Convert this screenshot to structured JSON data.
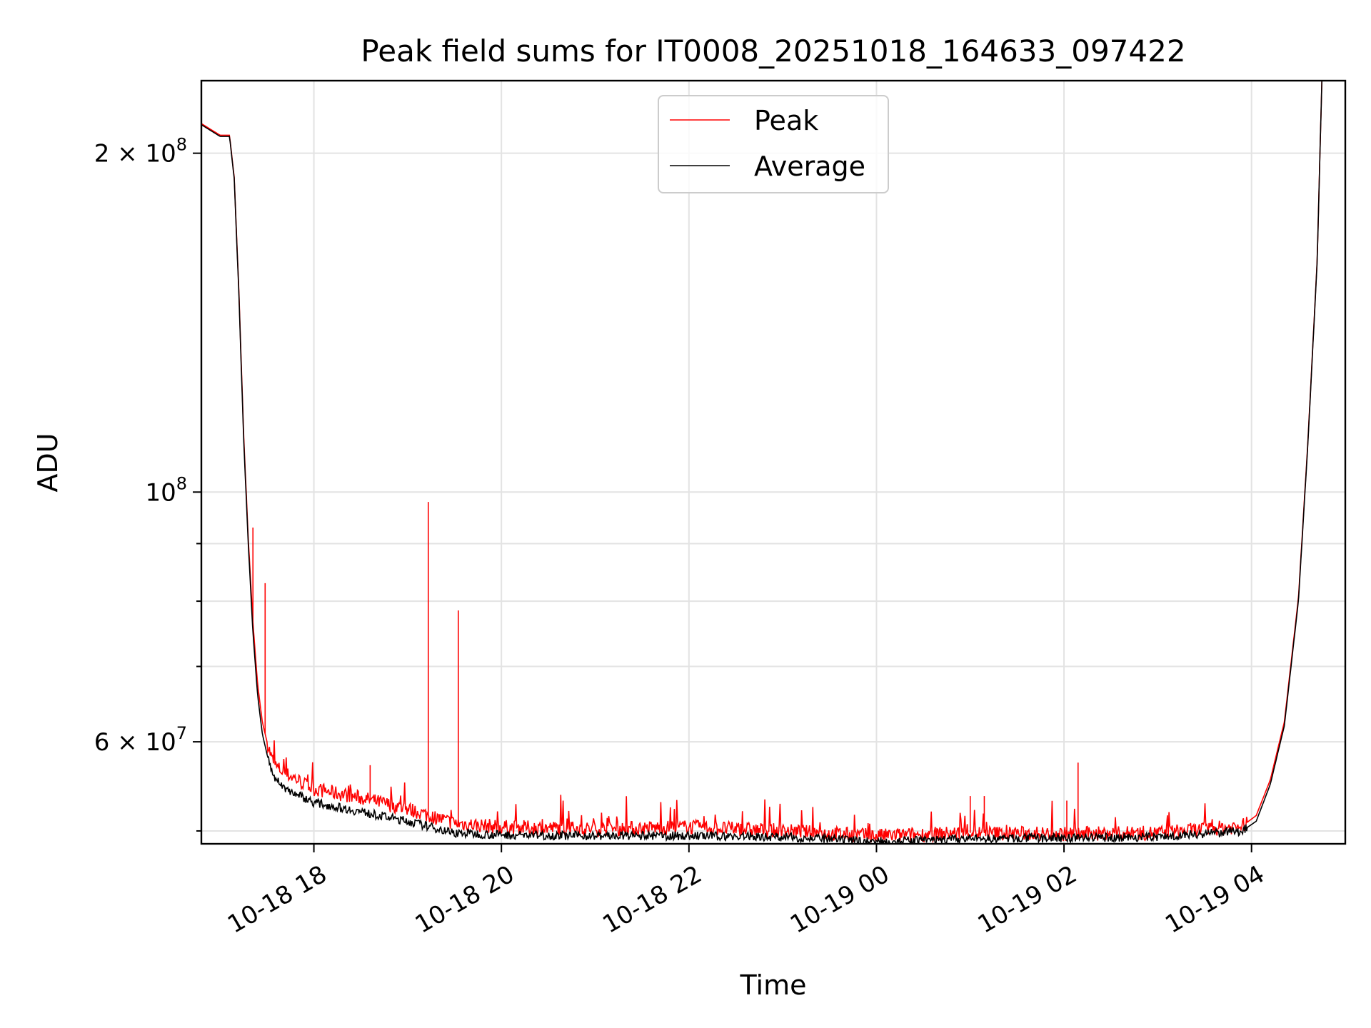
{
  "chart_data": {
    "type": "line",
    "title": "Peak field sums for IT0008_20251018_164633_097422",
    "xlabel": "Time",
    "ylabel": "ADU",
    "y_scale": "log",
    "ylim": [
      48700000,
      232000000
    ],
    "xlim_hours": [
      -1.2,
      11.0
    ],
    "x_reference": "10-18 18",
    "x_ticks": [
      {
        "hours": 0,
        "label": "10-18 18"
      },
      {
        "hours": 2,
        "label": "10-18 20"
      },
      {
        "hours": 4,
        "label": "10-18 22"
      },
      {
        "hours": 6,
        "label": "10-19 00"
      },
      {
        "hours": 8,
        "label": "10-19 02"
      },
      {
        "hours": 10,
        "label": "10-19 04"
      }
    ],
    "y_ticks_major": [
      {
        "value": 200000000,
        "base": "2 × 10",
        "exp": "8"
      },
      {
        "value": 100000000,
        "base": "10",
        "exp": "8"
      },
      {
        "value": 60000000,
        "base": "6 × 10",
        "exp": "7"
      }
    ],
    "y_ticks_minor": [
      50000000,
      70000000,
      80000000,
      90000000
    ],
    "legend": {
      "position": "upper center",
      "entries": [
        {
          "label": "Peak",
          "color": "#ff0000"
        },
        {
          "label": "Average",
          "color": "#000000"
        }
      ]
    },
    "series": [
      {
        "name": "Average",
        "color": "#000000",
        "x_hours": [
          -1.2,
          -1.0,
          -0.9,
          -0.85,
          -0.8,
          -0.75,
          -0.7,
          -0.65,
          -0.6,
          -0.55,
          -0.5,
          -0.45,
          -0.4,
          -0.3,
          -0.2,
          -0.1,
          0.0,
          0.5,
          1.0,
          1.5,
          2.0,
          3.0,
          4.0,
          5.0,
          6.0,
          7.0,
          8.0,
          9.0,
          9.9,
          10.05,
          10.2,
          10.35,
          10.5,
          10.6,
          10.7,
          10.75
        ],
        "values": [
          212000000,
          207000000,
          207000000,
          190000000,
          150000000,
          112000000,
          90000000,
          75000000,
          66000000,
          61000000,
          58500000,
          56500000,
          55500000,
          54500000,
          54000000,
          53500000,
          53000000,
          52000000,
          51000000,
          49800000,
          49600000,
          49500000,
          49500000,
          49400000,
          48900000,
          49200000,
          49300000,
          49400000,
          50000000,
          51000000,
          55000000,
          62000000,
          80000000,
          110000000,
          160000000,
          232000000
        ]
      },
      {
        "name": "Peak",
        "color": "#ff0000",
        "x_hours": [
          -1.2,
          -1.0,
          -0.9,
          -0.85,
          -0.8,
          -0.75,
          -0.7,
          -0.65,
          -0.6,
          -0.55,
          -0.5,
          -0.45,
          -0.4,
          -0.3,
          -0.2,
          -0.1,
          0.0,
          0.5,
          1.0,
          1.5,
          2.0,
          3.0,
          4.0,
          5.0,
          6.0,
          7.0,
          8.0,
          9.0,
          9.9,
          10.05,
          10.2,
          10.35,
          10.5,
          10.6,
          10.7,
          10.75
        ],
        "values": [
          212500000,
          207500000,
          207500000,
          190500000,
          151000000,
          113000000,
          91000000,
          76500000,
          67500000,
          62500000,
          60000000,
          58000000,
          57000000,
          56200000,
          55700000,
          55000000,
          54500000,
          53500000,
          52300000,
          50800000,
          50400000,
          50200000,
          50400000,
          50000000,
          49500000,
          49800000,
          49700000,
          49800000,
          50500000,
          51600000,
          55500000,
          62500000,
          80500000,
          110500000,
          160500000,
          232000000
        ],
        "spikes": [
          {
            "x_hours": -0.65,
            "value": 93000000
          },
          {
            "x_hours": -0.52,
            "value": 83000000
          },
          {
            "x_hours": 0.6,
            "value": 57200000
          },
          {
            "x_hours": 1.22,
            "value": 98000000
          },
          {
            "x_hours": 1.54,
            "value": 78500000
          },
          {
            "x_hours": 7.0,
            "value": 53700000
          },
          {
            "x_hours": 7.15,
            "value": 53700000
          },
          {
            "x_hours": 8.03,
            "value": 53200000
          },
          {
            "x_hours": 8.15,
            "value": 57500000
          }
        ]
      }
    ]
  }
}
